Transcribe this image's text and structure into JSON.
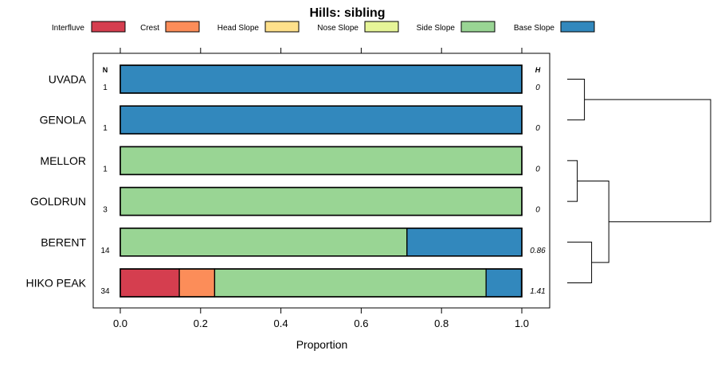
{
  "chart_data": {
    "type": "bar",
    "orientation": "horizontal",
    "stacked": true,
    "title": "Hills: sibling",
    "xlabel": "Proportion",
    "ylabel": "",
    "xlim": [
      0,
      1
    ],
    "x_ticks": [
      "0.0",
      "0.2",
      "0.4",
      "0.6",
      "0.8",
      "1.0"
    ],
    "x_tick_values": [
      0,
      0.2,
      0.4,
      0.6,
      0.8,
      1.0
    ],
    "legend_position": "top",
    "n_header": "N",
    "h_header": "H",
    "classes": [
      {
        "name": "Interfluve",
        "color": "#D53E4F"
      },
      {
        "name": "Crest",
        "color": "#FC8D59"
      },
      {
        "name": "Head Slope",
        "color": "#FEE08B"
      },
      {
        "name": "Nose Slope",
        "color": "#E6F598"
      },
      {
        "name": "Side Slope",
        "color": "#99D594"
      },
      {
        "name": "Base Slope",
        "color": "#3288BD"
      }
    ],
    "rows": [
      {
        "label": "UVADA",
        "n": "1",
        "h": "0",
        "values": [
          0,
          0,
          0,
          0,
          0,
          1.0
        ]
      },
      {
        "label": "GENOLA",
        "n": "1",
        "h": "0",
        "values": [
          0,
          0,
          0,
          0,
          0,
          1.0
        ]
      },
      {
        "label": "MELLOR",
        "n": "1",
        "h": "0",
        "values": [
          0,
          0,
          0,
          0,
          1.0,
          0
        ]
      },
      {
        "label": "GOLDRUN",
        "n": "3",
        "h": "0",
        "values": [
          0,
          0,
          0,
          0,
          1.0,
          0
        ]
      },
      {
        "label": "BERENT",
        "n": "14",
        "h": "0.86",
        "values": [
          0,
          0,
          0,
          0,
          0.714,
          0.286
        ]
      },
      {
        "label": "HIKO PEAK",
        "n": "34",
        "h": "1.41",
        "values": [
          0.147,
          0.088,
          0,
          0,
          0.676,
          0.088
        ]
      }
    ],
    "dendrogram": {
      "merges": [
        {
          "a": "UVADA",
          "b": "GENOLA",
          "height": 0.12
        },
        {
          "a": "MELLOR",
          "b": "GOLDRUN",
          "height": 0.07
        },
        {
          "a": "BERENT",
          "b": "HIKO PEAK",
          "height": 0.17
        },
        {
          "a": "MELLOR+GOLDRUN",
          "b": "BERENT+HIKO PEAK",
          "height": 0.29
        },
        {
          "a": "UVADA+GENOLA",
          "b": "MELLOR+GOLDRUN+BERENT+HIKO PEAK",
          "height": 1.0
        }
      ]
    }
  }
}
